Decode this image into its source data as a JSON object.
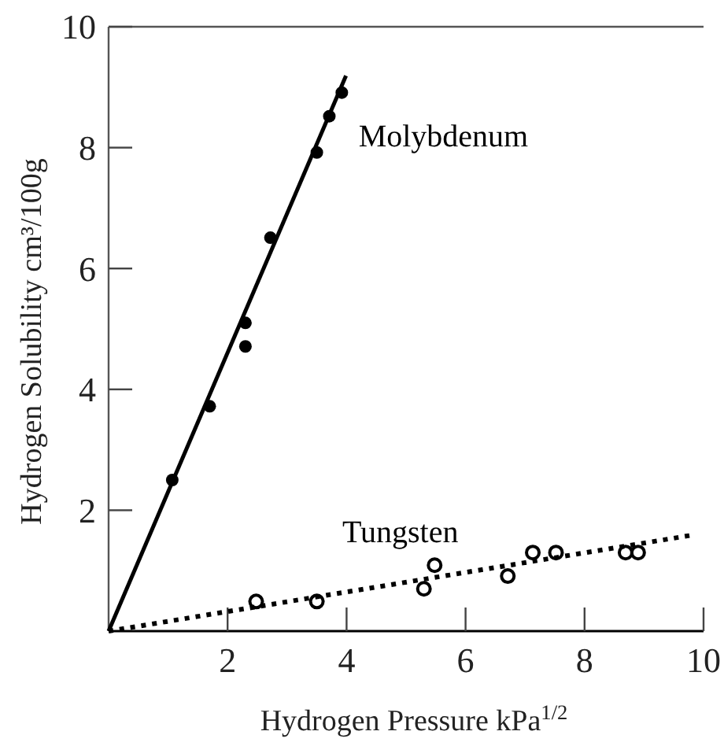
{
  "chart_data": {
    "type": "scatter",
    "xlabel": "Hydrogen Pressure kPa$^{1/2}$",
    "ylabel": "Hydrogen Solubility cm³/100g",
    "xlim": [
      0,
      10
    ],
    "ylim": [
      0,
      10
    ],
    "xticks": [
      2,
      4,
      6,
      8,
      10
    ],
    "yticks": [
      2,
      4,
      6,
      8,
      10
    ],
    "grid": false,
    "series": [
      {
        "color": "#000000",
        "marker": "circle",
        "x": [
          1.07,
          1.7,
          2.3,
          2.3,
          2.72,
          3.5,
          3.71,
          3.92
        ],
        "values": [
          2.5,
          3.72,
          4.71,
          5.1,
          6.51,
          7.92,
          8.52,
          8.91
        ]
      },
      {
        "type": "line",
        "name": "Molybdenum",
        "color": "#000000",
        "line_style": "solid",
        "x": [
          0,
          3.99
        ],
        "values": [
          0,
          9.19
        ]
      },
      {
        "color": "#000000",
        "marker": "open_circle",
        "x": [
          2.48,
          3.5,
          5.3,
          5.48,
          6.71,
          7.13,
          7.52,
          8.69,
          8.9
        ],
        "values": [
          0.49,
          0.49,
          0.7,
          1.09,
          0.91,
          1.3,
          1.3,
          1.3,
          1.3
        ]
      },
      {
        "type": "line",
        "name": "Tungsten",
        "color": "#000000",
        "line_style": "dotted",
        "x": [
          0,
          9.82
        ],
        "values": [
          0,
          1.59
        ]
      }
    ]
  }
}
